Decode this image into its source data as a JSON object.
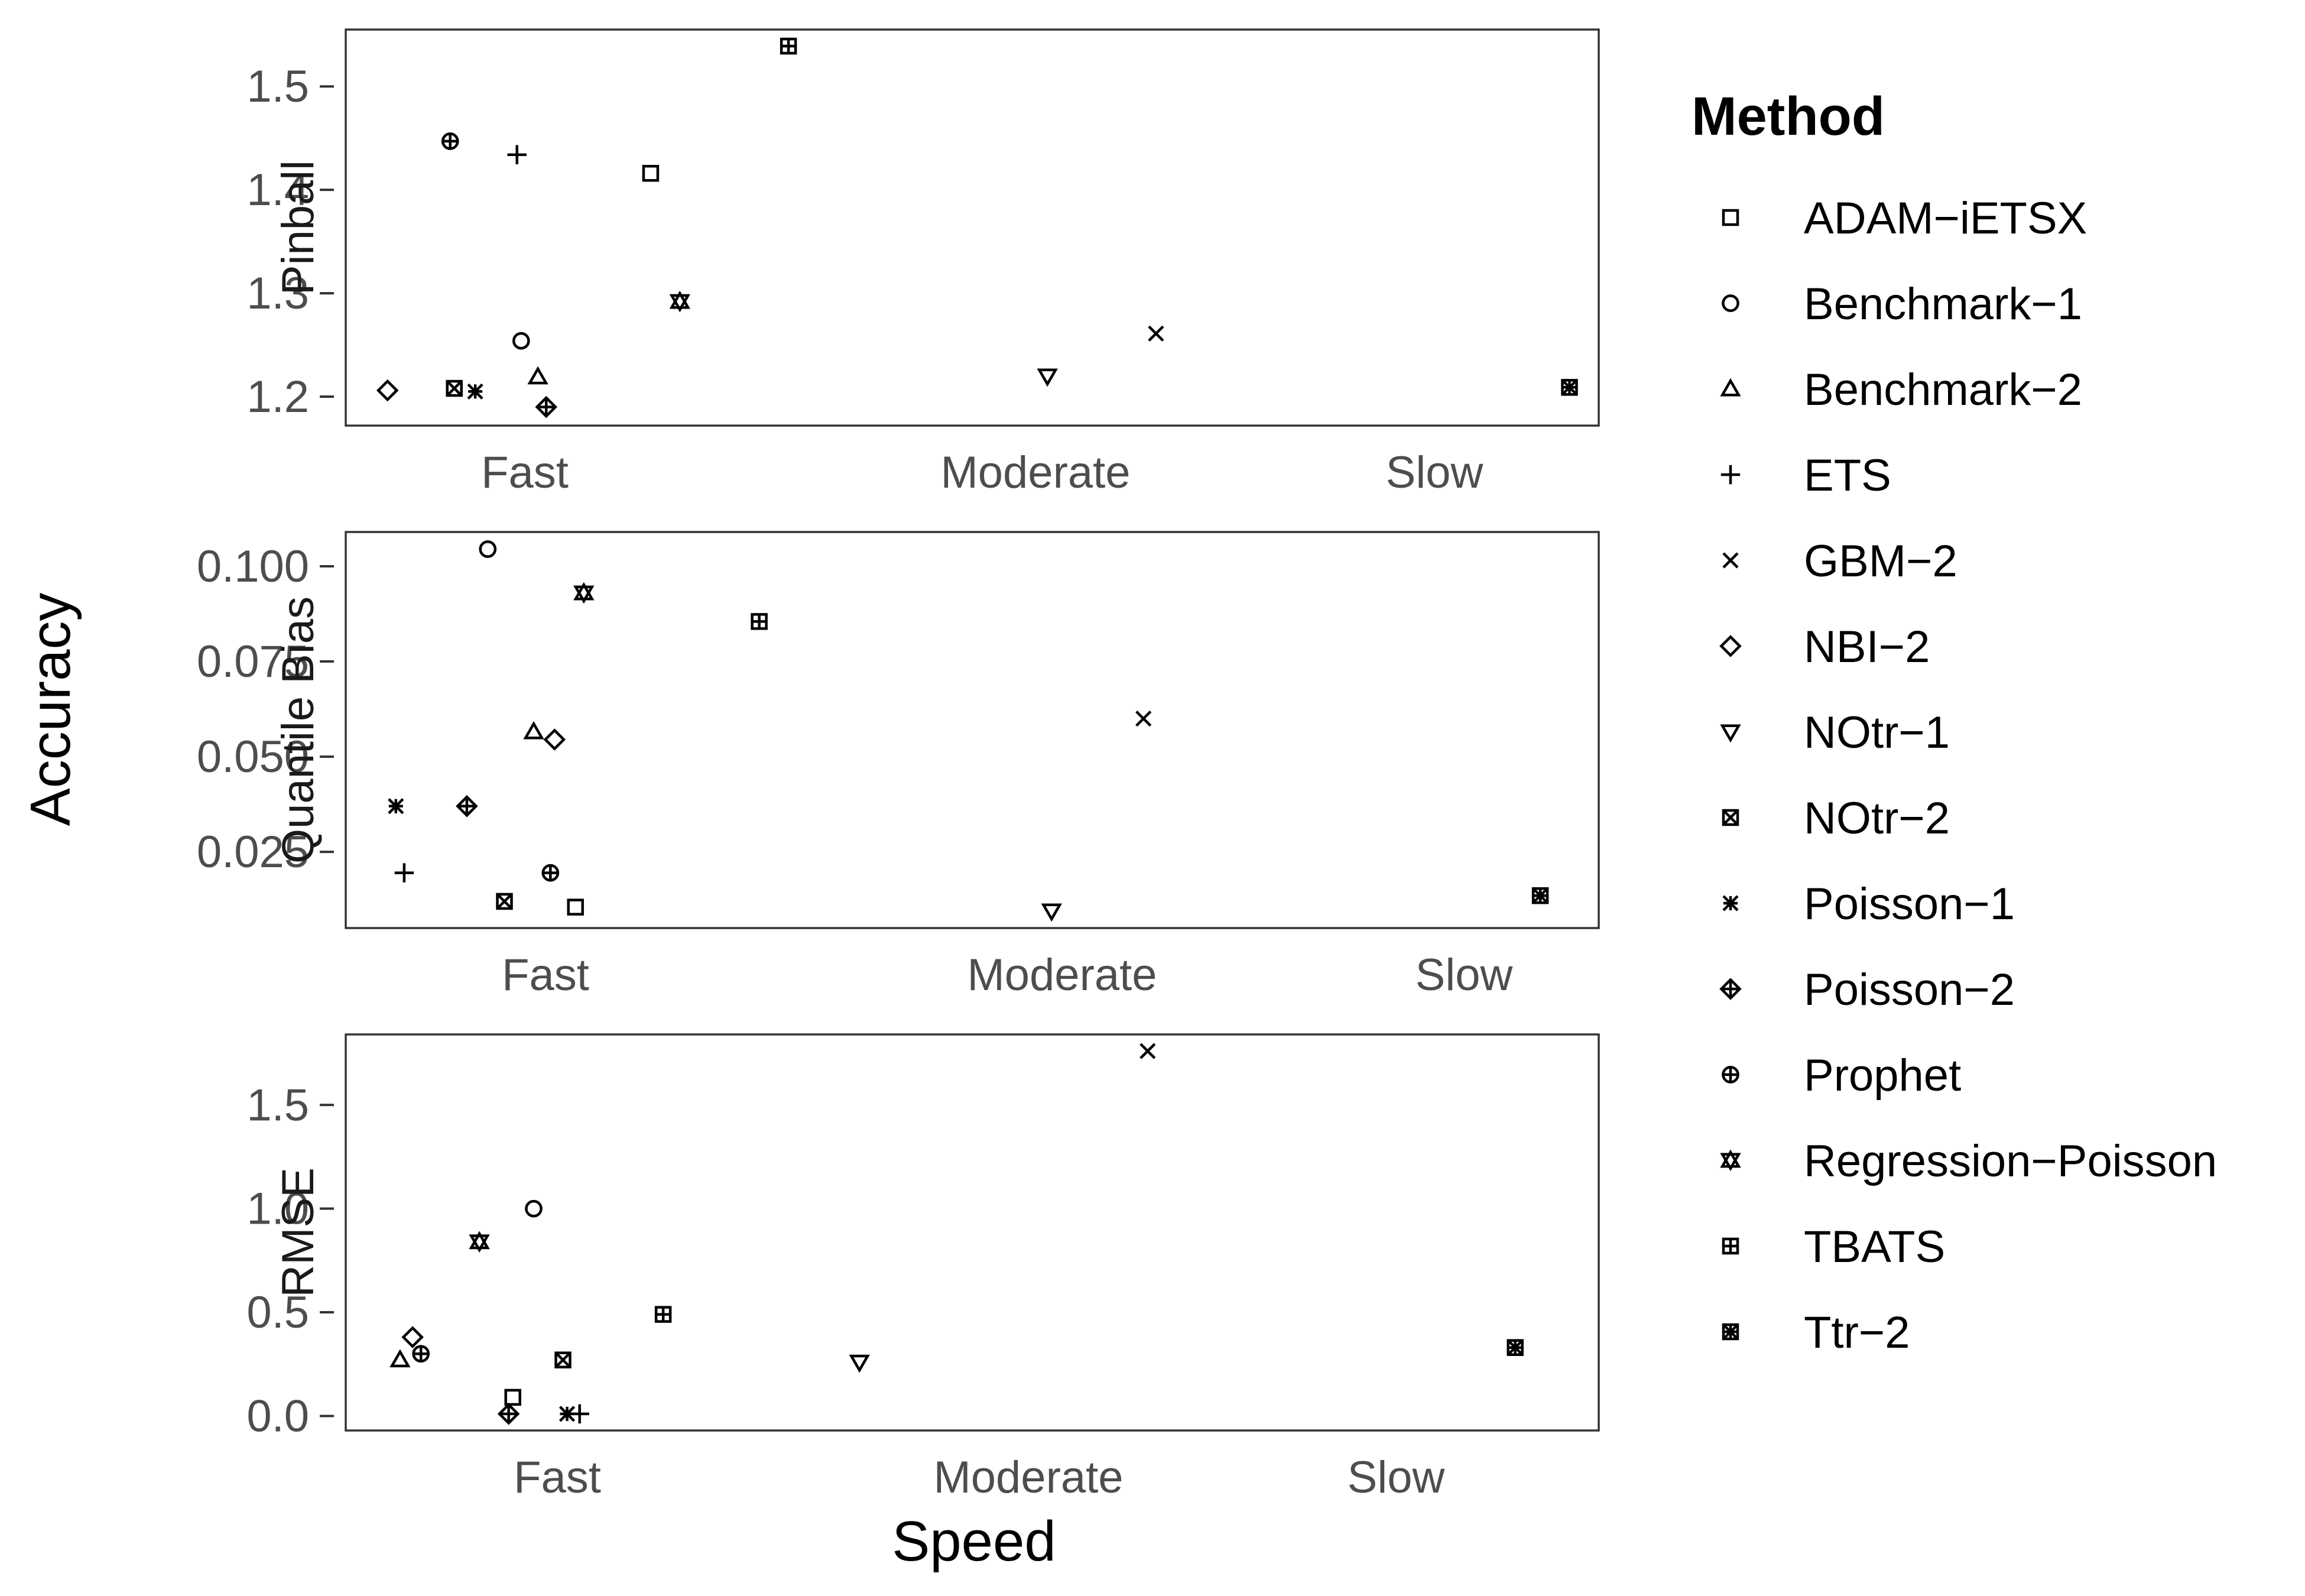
{
  "chart_data": {
    "type": "scatter",
    "xlabel": "Speed",
    "ylabel": "Accuracy",
    "legend": {
      "title": "Method",
      "position": "right",
      "entries": [
        {
          "name": "ADAM−iETSX",
          "shape": "square-open"
        },
        {
          "name": "Benchmark−1",
          "shape": "circle-open"
        },
        {
          "name": "Benchmark−2",
          "shape": "triangle-up-open"
        },
        {
          "name": "ETS",
          "shape": "plus"
        },
        {
          "name": "GBM−2",
          "shape": "cross"
        },
        {
          "name": "NBI−2",
          "shape": "diamond-open"
        },
        {
          "name": "NOtr−1",
          "shape": "triangle-down-open"
        },
        {
          "name": "NOtr−2",
          "shape": "square-cross"
        },
        {
          "name": "Poisson−1",
          "shape": "asterisk"
        },
        {
          "name": "Poisson−2",
          "shape": "diamond-plus"
        },
        {
          "name": "Prophet",
          "shape": "circle-plus"
        },
        {
          "name": "Regression−Poisson",
          "shape": "triangles-star"
        },
        {
          "name": "TBATS",
          "shape": "square-plus"
        },
        {
          "name": "Ttr−2",
          "shape": "square-star"
        }
      ]
    },
    "panels": [
      {
        "label": "Pinball",
        "x_categories": [
          "Fast",
          "Moderate",
          "Slow"
        ],
        "x_range": [
          0.5,
          3.5
        ],
        "ylim": [
          1.172,
          1.555
        ],
        "y_ticks": [
          1.2,
          1.3,
          1.4,
          1.5
        ],
        "y_tick_labels": [
          "1.2",
          "1.3",
          "1.4",
          "1.5"
        ],
        "points": [
          {
            "method": "ADAM−iETSX",
            "x": 1.23,
            "y": 1.416
          },
          {
            "method": "Benchmark−1",
            "x": 0.92,
            "y": 1.254
          },
          {
            "method": "Benchmark−2",
            "x": 0.96,
            "y": 1.219
          },
          {
            "method": "ETS",
            "x": 0.91,
            "y": 1.434
          },
          {
            "method": "GBM−2",
            "x": 2.44,
            "y": 1.261
          },
          {
            "method": "NBI−2",
            "x": 0.6,
            "y": 1.206
          },
          {
            "method": "NOtr−1",
            "x": 2.18,
            "y": 1.22
          },
          {
            "method": "NOtr−2",
            "x": 0.76,
            "y": 1.208
          },
          {
            "method": "Poisson−1",
            "x": 0.81,
            "y": 1.205
          },
          {
            "method": "Poisson−2",
            "x": 0.98,
            "y": 1.19
          },
          {
            "method": "Prophet",
            "x": 0.75,
            "y": 1.447
          },
          {
            "method": "Regression−Poisson",
            "x": 1.3,
            "y": 1.292
          },
          {
            "method": "TBATS",
            "x": 1.56,
            "y": 1.539
          },
          {
            "method": "Ttr−2",
            "x": 3.43,
            "y": 1.209
          }
        ]
      },
      {
        "label": "Quantile Bias",
        "x_categories": [
          "Fast",
          "Moderate",
          "Slow"
        ],
        "x_range": [
          0.5,
          3.5
        ],
        "ylim": [
          0.005,
          0.109
        ],
        "y_ticks": [
          0.025,
          0.05,
          0.075,
          0.1
        ],
        "y_tick_labels": [
          "0.025",
          "0.050",
          "0.075",
          "0.100"
        ],
        "points": [
          {
            "method": "ADAM−iETSX",
            "x": 1.05,
            "y": 0.0105
          },
          {
            "method": "Benchmark−1",
            "x": 0.84,
            "y": 0.1045
          },
          {
            "method": "Benchmark−2",
            "x": 0.95,
            "y": 0.0565
          },
          {
            "method": "ETS",
            "x": 0.64,
            "y": 0.0195
          },
          {
            "method": "GBM−2",
            "x": 2.41,
            "y": 0.06
          },
          {
            "method": "NBI−2",
            "x": 1.0,
            "y": 0.0545
          },
          {
            "method": "NOtr−1",
            "x": 2.19,
            "y": 0.0095
          },
          {
            "method": "NOtr−2",
            "x": 0.88,
            "y": 0.012
          },
          {
            "method": "Poisson−1",
            "x": 0.62,
            "y": 0.037
          },
          {
            "method": "Poisson−2",
            "x": 0.79,
            "y": 0.037
          },
          {
            "method": "Prophet",
            "x": 0.99,
            "y": 0.0195
          },
          {
            "method": "Regression−Poisson",
            "x": 1.07,
            "y": 0.093
          },
          {
            "method": "TBATS",
            "x": 1.49,
            "y": 0.0855
          },
          {
            "method": "Ttr−2",
            "x": 3.36,
            "y": 0.0135
          }
        ]
      },
      {
        "label": "RMSE",
        "x_categories": [
          "Fast",
          "Moderate",
          "Slow"
        ],
        "x_range": [
          0.5,
          3.5
        ],
        "ylim": [
          -0.07,
          1.84
        ],
        "y_ticks": [
          0.0,
          0.5,
          1.0,
          1.5
        ],
        "y_tick_labels": [
          "0.0",
          "0.5",
          "1.0",
          "1.5"
        ],
        "points": [
          {
            "method": "ADAM−iETSX",
            "x": 0.9,
            "y": 0.09
          },
          {
            "method": "Benchmark−1",
            "x": 0.95,
            "y": 1.0
          },
          {
            "method": "Benchmark−2",
            "x": 0.63,
            "y": 0.27
          },
          {
            "method": "ETS",
            "x": 1.06,
            "y": 0.01
          },
          {
            "method": "GBM−2",
            "x": 2.42,
            "y": 1.76
          },
          {
            "method": "NBI−2",
            "x": 0.66,
            "y": 0.38
          },
          {
            "method": "NOtr−1",
            "x": 1.73,
            "y": 0.26
          },
          {
            "method": "NOtr−2",
            "x": 1.02,
            "y": 0.27
          },
          {
            "method": "Poisson−1",
            "x": 1.03,
            "y": 0.01
          },
          {
            "method": "Poisson−2",
            "x": 0.89,
            "y": 0.01
          },
          {
            "method": "Prophet",
            "x": 0.68,
            "y": 0.3
          },
          {
            "method": "Regression−Poisson",
            "x": 0.82,
            "y": 0.84
          },
          {
            "method": "TBATS",
            "x": 1.26,
            "y": 0.49
          },
          {
            "method": "Ttr−2",
            "x": 3.3,
            "y": 0.33
          }
        ]
      }
    ]
  }
}
